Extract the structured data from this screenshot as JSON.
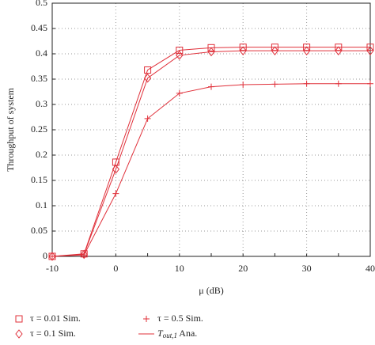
{
  "chart_data": {
    "type": "line",
    "x_label": "μ (dB)",
    "y_label": "Throughput of system",
    "x": [
      -10,
      -5,
      0,
      5,
      10,
      15,
      20,
      25,
      30,
      35,
      40
    ],
    "series": [
      {
        "name": "τ = 0.01 Sim.",
        "marker": "square",
        "color": "#e0303a",
        "values": [
          0,
          0.005,
          0.186,
          0.368,
          0.407,
          0.412,
          0.413,
          0.413,
          0.413,
          0.413,
          0.413
        ]
      },
      {
        "name": "τ = 0.1 Sim.",
        "marker": "diamond",
        "color": "#e0303a",
        "values": [
          0,
          0.004,
          0.172,
          0.352,
          0.397,
          0.404,
          0.406,
          0.406,
          0.406,
          0.406,
          0.406
        ]
      },
      {
        "name": "τ = 0.5 Sim.",
        "marker": "plus",
        "color": "#e0303a",
        "values": [
          0,
          0.003,
          0.124,
          0.272,
          0.322,
          0.335,
          0.339,
          0.34,
          0.341,
          0.341,
          0.341
        ]
      }
    ],
    "line_legend": {
      "main": "T",
      "sub": "out,1",
      "rest": " Ana."
    },
    "xlim": [
      -10,
      40
    ],
    "xticks": [
      -10,
      -5,
      0,
      5,
      10,
      15,
      20,
      25,
      30,
      35,
      40
    ],
    "xtick_labels": [
      -10,
      0,
      10,
      20,
      30,
      40
    ],
    "ylim": [
      0,
      0.5
    ],
    "yticks": [
      0,
      0.05,
      0.1,
      0.15,
      0.2,
      0.25,
      0.3,
      0.35,
      0.4,
      0.45,
      0.5
    ],
    "grid": true
  }
}
